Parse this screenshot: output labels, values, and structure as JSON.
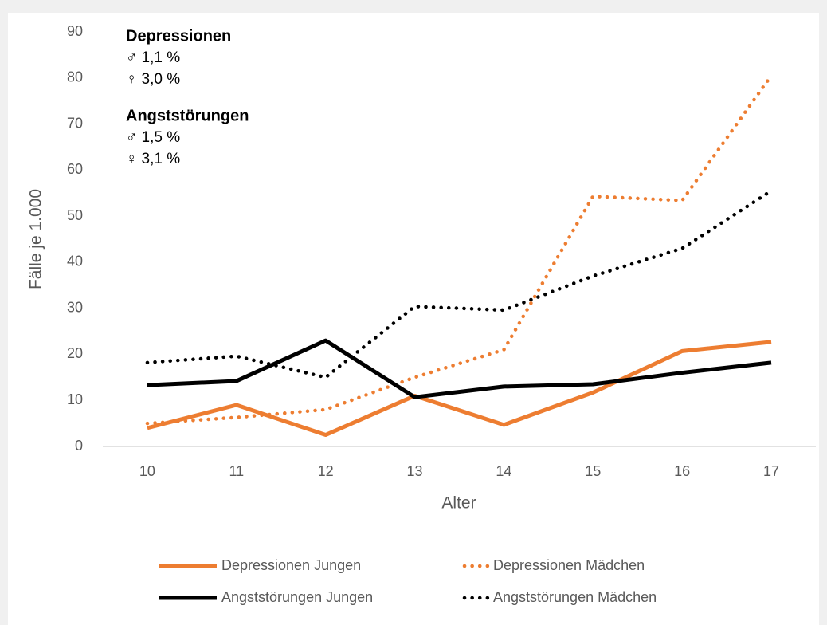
{
  "chart_data": {
    "type": "line",
    "x": [
      10,
      11,
      12,
      13,
      14,
      15,
      16,
      17
    ],
    "xlim": [
      9.5,
      17.5
    ],
    "xticks": [
      10,
      11,
      12,
      13,
      14,
      15,
      16,
      17
    ],
    "ylim": [
      0,
      90
    ],
    "yticks": [
      0,
      10,
      20,
      30,
      40,
      50,
      60,
      70,
      80,
      90
    ],
    "grid": false,
    "x_label": "Alter",
    "y_label": "Fälle je 1.000",
    "legend": "bottom",
    "annotations": [
      {
        "title": "Depressionen",
        "lines": [
          "♂ 1,1 %",
          "♀ 3,0 %"
        ]
      },
      {
        "title": "Angststörungen",
        "lines": [
          "♂ 1,5 %",
          "♀ 3,1 %"
        ]
      }
    ],
    "series": [
      {
        "name": "Depressionen Jungen",
        "color": "#ed7d31",
        "dash": "solid",
        "values": [
          4,
          9,
          2.5,
          11,
          4.7,
          11.7,
          20.7,
          22.7
        ]
      },
      {
        "name": "Depressionen Mädchen",
        "color": "#ed7d31",
        "dash": "dotted",
        "values": [
          5,
          6.3,
          8,
          15,
          21,
          54.3,
          53.4,
          80.5
        ]
      },
      {
        "name": "Angststörungen Jungen",
        "color": "#000000",
        "dash": "solid",
        "values": [
          13.3,
          14.2,
          23,
          10.7,
          13,
          13.5,
          16,
          18.2
        ]
      },
      {
        "name": "Angststörungen Mädchen",
        "color": "#000000",
        "dash": "dotted",
        "values": [
          18.2,
          19.6,
          15,
          30.4,
          29.6,
          37,
          43,
          55.5
        ]
      }
    ]
  }
}
